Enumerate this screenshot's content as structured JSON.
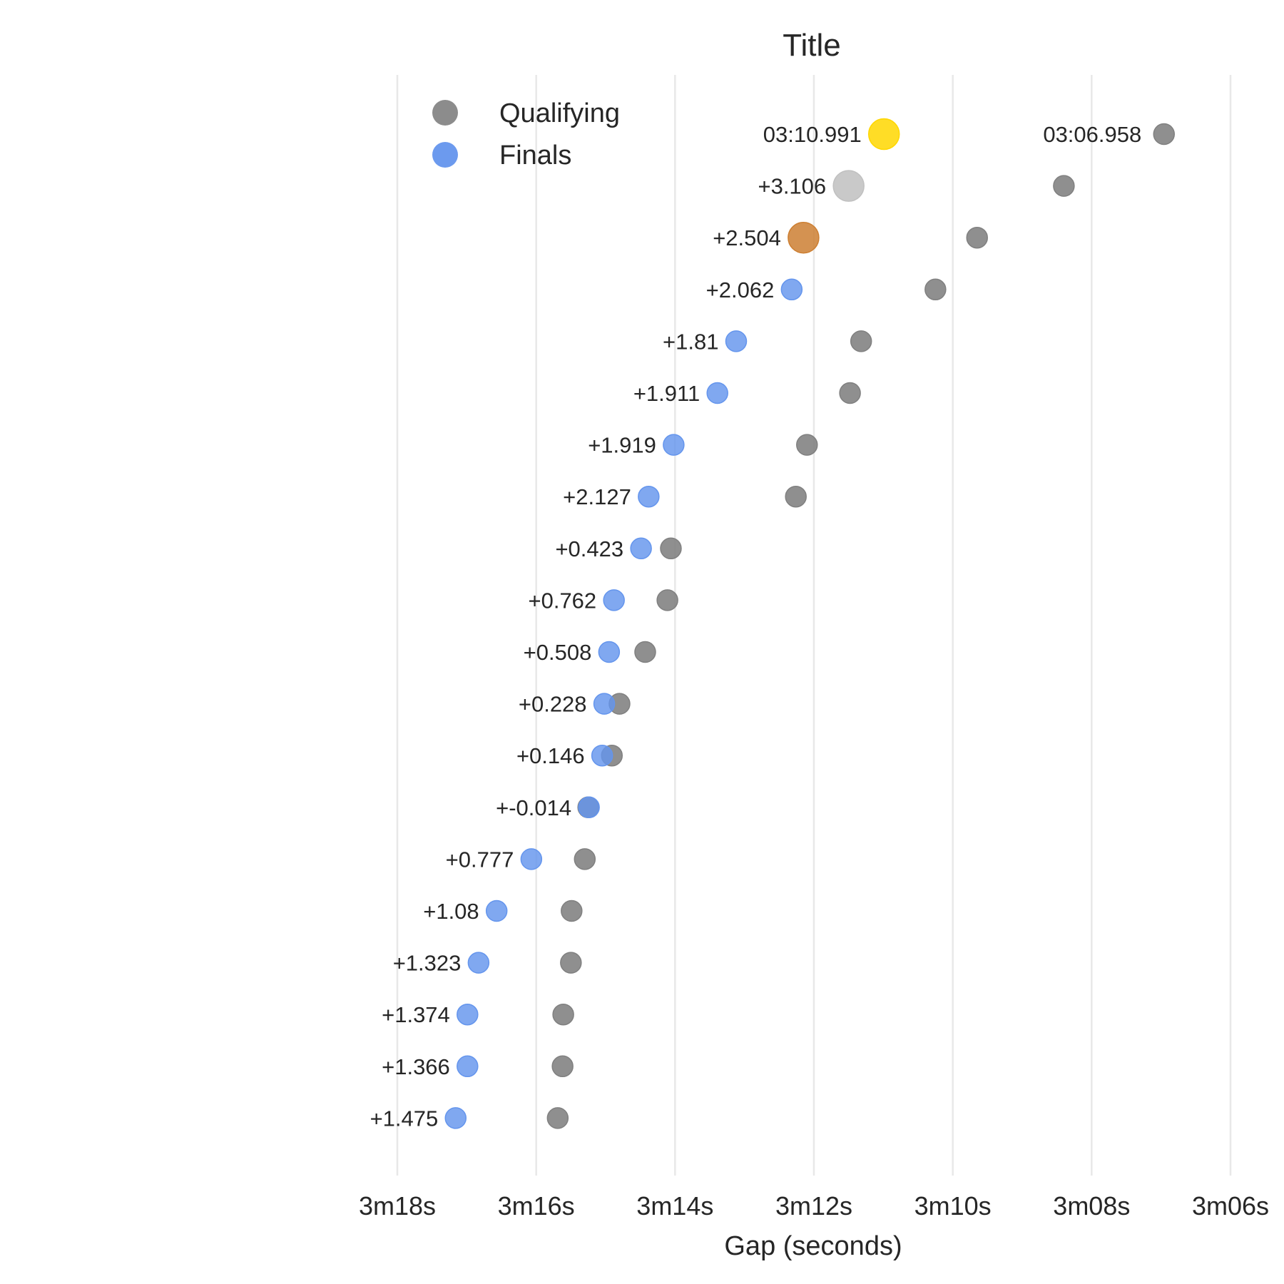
{
  "chart_data": {
    "type": "scatter",
    "title": "Title",
    "xlabel": "Gap (seconds)",
    "ylabel": "",
    "x_axis": {
      "reversed": true,
      "range_seconds": [
        198,
        186
      ],
      "ticks": [
        198,
        196,
        194,
        192,
        190,
        188,
        186
      ],
      "tick_labels": [
        "3m18s",
        "3m16s",
        "3m14s",
        "3m12s",
        "3m10s",
        "3m08s",
        "3m06s"
      ]
    },
    "grid": {
      "vertical": true,
      "horizontal": false
    },
    "legend": {
      "placement": "top-left",
      "entries": [
        {
          "name": "Qualifying",
          "color": "#808080"
        },
        {
          "name": "Finals",
          "color": "#6495ED"
        }
      ]
    },
    "colors": {
      "qualifying": "#808080",
      "finals": "#6495ED",
      "gold": "#FFD700",
      "silver": "#C0C0C0",
      "bronze": "#CD7F32"
    },
    "rows": [
      {
        "rank": 1,
        "qualifying": 186.958,
        "finals": 190.991,
        "label": "03:10.991",
        "medal": "gold"
      },
      {
        "rank": 2,
        "qualifying": 188.4,
        "finals": 191.5,
        "label": "+3.106",
        "medal": "silver"
      },
      {
        "rank": 3,
        "qualifying": 189.65,
        "finals": 192.15,
        "label": "+2.504",
        "medal": "bronze"
      },
      {
        "rank": 4,
        "qualifying": 190.25,
        "finals": 192.32,
        "label": "+2.062"
      },
      {
        "rank": 5,
        "qualifying": 191.32,
        "finals": 193.12,
        "label": "+1.81"
      },
      {
        "rank": 6,
        "qualifying": 191.48,
        "finals": 193.39,
        "label": "+1.911"
      },
      {
        "rank": 7,
        "qualifying": 192.1,
        "finals": 194.02,
        "label": "+1.919"
      },
      {
        "rank": 8,
        "qualifying": 192.26,
        "finals": 194.38,
        "label": "+2.127"
      },
      {
        "rank": 9,
        "qualifying": 194.06,
        "finals": 194.49,
        "label": "+0.423"
      },
      {
        "rank": 10,
        "qualifying": 194.11,
        "finals": 194.88,
        "label": "+0.762"
      },
      {
        "rank": 11,
        "qualifying": 194.43,
        "finals": 194.95,
        "label": "+0.508"
      },
      {
        "rank": 12,
        "qualifying": 194.8,
        "finals": 195.02,
        "label": "+0.228"
      },
      {
        "rank": 13,
        "qualifying": 194.91,
        "finals": 195.05,
        "label": "+0.146"
      },
      {
        "rank": 14,
        "qualifying": 195.25,
        "finals": 195.24,
        "label": "+-0.014"
      },
      {
        "rank": 15,
        "qualifying": 195.3,
        "finals": 196.07,
        "label": "+0.777"
      },
      {
        "rank": 16,
        "qualifying": 195.49,
        "finals": 196.57,
        "label": "+1.08"
      },
      {
        "rank": 17,
        "qualifying": 195.5,
        "finals": 196.83,
        "label": "+1.323"
      },
      {
        "rank": 18,
        "qualifying": 195.61,
        "finals": 196.99,
        "label": "+1.374"
      },
      {
        "rank": 19,
        "qualifying": 195.62,
        "finals": 196.99,
        "label": "+1.366"
      },
      {
        "rank": 20,
        "qualifying": 195.69,
        "finals": 197.16,
        "label": "+1.475"
      }
    ]
  }
}
